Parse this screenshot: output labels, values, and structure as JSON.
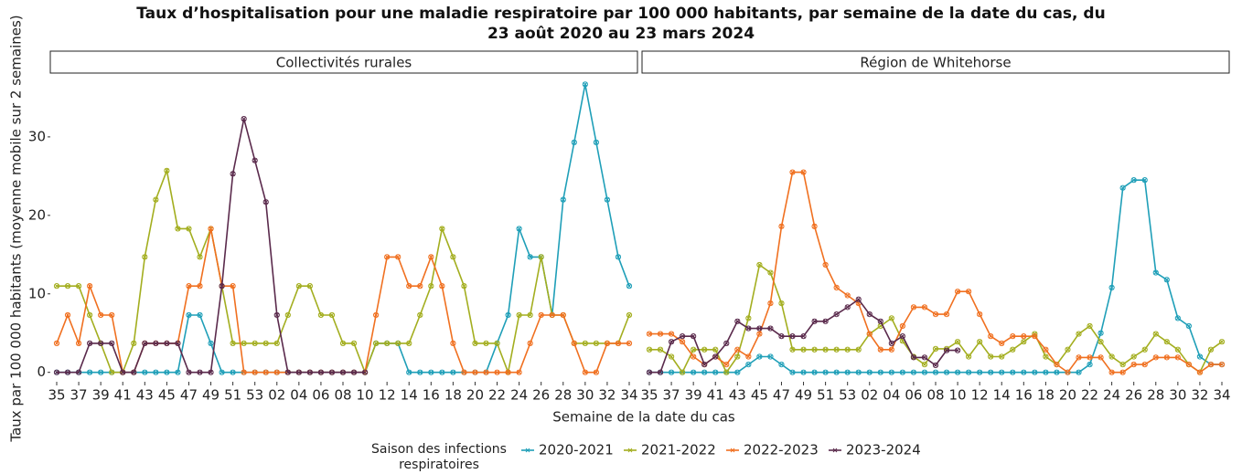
{
  "title": "Taux d’hospitalisation pour une maladie respiratoire par 100 000 habitants, par semaine de la date du cas, du\n23 août 2020 au 23 mars 2024",
  "y_label": "Taux par 100 000 habitants (moyenne mobile sur 2 semaines)",
  "x_label": "Semaine de la date du cas",
  "legend_title": "Saison des infections\nrespiratoires",
  "chart_data": [
    {
      "type": "line",
      "facet": "Collectivités rurales",
      "categories": [
        "35",
        null,
        "37",
        null,
        "39",
        null,
        "41",
        null,
        "43",
        null,
        "45",
        null,
        "47",
        null,
        "49",
        null,
        "51",
        null,
        "53",
        null,
        "02",
        null,
        "04",
        null,
        "06",
        null,
        "08",
        null,
        "10",
        null,
        "12",
        null,
        "14",
        null,
        "16",
        null,
        "18",
        null,
        "20",
        null,
        "22",
        null,
        "24",
        null,
        "26",
        null,
        "28",
        null,
        "30",
        null,
        "32",
        null,
        "34"
      ],
      "ylim": [
        -1.2,
        37.9
      ],
      "yticks": [
        0,
        10,
        20,
        30
      ],
      "series": [
        {
          "name": "2020-2021",
          "color": "#1f9fb8",
          "values": [
            0,
            0,
            0,
            0,
            0,
            0,
            0,
            0,
            0,
            0,
            0,
            0,
            7.3,
            7.3,
            3.7,
            0,
            0,
            0,
            0,
            0,
            0,
            0,
            0,
            0,
            0,
            0,
            0,
            0,
            0,
            3.7,
            3.7,
            3.7,
            0,
            0,
            0,
            0,
            0,
            0,
            0,
            0,
            3.7,
            7.3,
            18.3,
            14.7,
            14.7,
            7.3,
            22,
            29.3,
            36.7,
            29.3,
            22,
            14.7,
            11
          ]
        },
        {
          "name": "2021-2022",
          "color": "#a3ae1f",
          "values": [
            11,
            11,
            11,
            7.3,
            3.7,
            0,
            0,
            3.7,
            14.7,
            22,
            25.7,
            18.3,
            18.3,
            14.7,
            18.3,
            11,
            3.7,
            3.7,
            3.7,
            3.7,
            3.7,
            7.3,
            11,
            11,
            7.3,
            7.3,
            3.7,
            3.7,
            0,
            3.7,
            3.7,
            3.7,
            3.7,
            7.3,
            11,
            18.3,
            14.7,
            11,
            3.7,
            3.7,
            3.7,
            0,
            7.3,
            7.3,
            14.7,
            7.3,
            7.3,
            3.7,
            3.7,
            3.7,
            3.7,
            3.7,
            7.3
          ]
        },
        {
          "name": "2022-2023",
          "color": "#f07020",
          "values": [
            3.7,
            7.3,
            3.7,
            11,
            7.3,
            7.3,
            0,
            0,
            3.7,
            3.7,
            3.7,
            3.7,
            11,
            11,
            18.3,
            11,
            11,
            0,
            0,
            0,
            0,
            0,
            0,
            0,
            0,
            0,
            0,
            0,
            0,
            7.3,
            14.7,
            14.7,
            11,
            11,
            14.7,
            11,
            3.7,
            0,
            0,
            0,
            0,
            0,
            0,
            3.7,
            7.3,
            7.3,
            7.3,
            3.7,
            0,
            0,
            3.7,
            3.7,
            3.7
          ]
        },
        {
          "name": "2023-2024",
          "color": "#5a2a4c",
          "values": [
            0,
            0,
            0,
            3.7,
            3.7,
            3.7,
            0,
            0,
            3.7,
            3.7,
            3.7,
            3.7,
            0,
            0,
            0,
            11,
            25.3,
            32.3,
            27,
            21.7,
            7.3,
            0,
            0,
            0,
            0,
            0,
            0,
            0,
            0,
            null,
            null,
            null,
            null,
            null,
            null,
            null,
            null,
            null,
            null,
            null,
            null,
            null,
            null,
            null,
            null,
            null,
            null,
            null,
            null,
            null,
            null,
            null,
            null
          ]
        }
      ]
    },
    {
      "type": "line",
      "facet": "Région de Whitehorse",
      "categories": [
        "35",
        null,
        "37",
        null,
        "39",
        null,
        "41",
        null,
        "43",
        null,
        "45",
        null,
        "47",
        null,
        "49",
        null,
        "51",
        null,
        "53",
        null,
        "02",
        null,
        "04",
        null,
        "06",
        null,
        "08",
        null,
        "10",
        null,
        "12",
        null,
        "14",
        null,
        "16",
        null,
        "18",
        null,
        "20",
        null,
        "22",
        null,
        "24",
        null,
        "26",
        null,
        "28",
        null,
        "30",
        null,
        "32",
        null,
        "34"
      ],
      "ylim": [
        -1.2,
        37.9
      ],
      "yticks": [
        0,
        10,
        20,
        30
      ],
      "series": [
        {
          "name": "2020-2021",
          "color": "#1f9fb8",
          "values": [
            0,
            0,
            0,
            0,
            0,
            0,
            0,
            0,
            0,
            1,
            2,
            2,
            1,
            0,
            0,
            0,
            0,
            0,
            0,
            0,
            0,
            0,
            0,
            0,
            0,
            0,
            0,
            0,
            0,
            0,
            0,
            0,
            0,
            0,
            0,
            0,
            0,
            0,
            0,
            0,
            1,
            5,
            10.8,
            23.5,
            24.5,
            24.5,
            12.7,
            11.8,
            6.9,
            5.9,
            2,
            1,
            1
          ]
        },
        {
          "name": "2021-2022",
          "color": "#a3ae1f",
          "values": [
            2.9,
            2.9,
            2,
            0,
            2.9,
            2.9,
            2.9,
            0,
            2,
            6.9,
            13.7,
            12.7,
            8.8,
            2.9,
            2.9,
            2.9,
            2.9,
            2.9,
            2.9,
            2.9,
            4.9,
            5.9,
            6.9,
            4,
            2,
            1,
            3,
            3,
            3.9,
            2,
            3.9,
            2,
            2,
            2.9,
            3.9,
            4.9,
            2,
            1,
            2.9,
            4.9,
            5.9,
            3.9,
            2,
            1,
            2,
            2.9,
            4.9,
            3.9,
            2.9,
            1,
            0,
            2.9,
            3.9
          ]
        },
        {
          "name": "2022-2023",
          "color": "#f07020",
          "values": [
            4.9,
            4.9,
            4.9,
            3.9,
            2,
            1,
            2,
            1,
            2.9,
            2,
            4.9,
            8.8,
            18.6,
            25.5,
            25.5,
            18.6,
            13.7,
            10.8,
            9.8,
            8.8,
            4.9,
            2.9,
            2.9,
            5.9,
            8.3,
            8.3,
            7.4,
            7.4,
            10.3,
            10.3,
            7.4,
            4.6,
            3.7,
            4.6,
            4.6,
            4.6,
            2.9,
            1,
            0,
            1.9,
            1.9,
            1.9,
            0,
            0,
            1,
            1,
            1.9,
            1.9,
            1.9,
            1,
            0,
            1,
            1
          ]
        },
        {
          "name": "2023-2024",
          "color": "#5a2a4c",
          "values": [
            0,
            0,
            3.9,
            4.6,
            4.6,
            1,
            2,
            3.7,
            6.5,
            5.6,
            5.6,
            5.6,
            4.6,
            4.6,
            4.6,
            6.5,
            6.5,
            7.4,
            8.3,
            9.3,
            7.4,
            6.5,
            3.7,
            4.6,
            1.9,
            1.9,
            0.9,
            2.8,
            2.8,
            null,
            null,
            null,
            null,
            null,
            null,
            null,
            null,
            null,
            null,
            null,
            null,
            null,
            null,
            null,
            null,
            null,
            null,
            null,
            null,
            null,
            null,
            null,
            null
          ]
        }
      ]
    }
  ]
}
